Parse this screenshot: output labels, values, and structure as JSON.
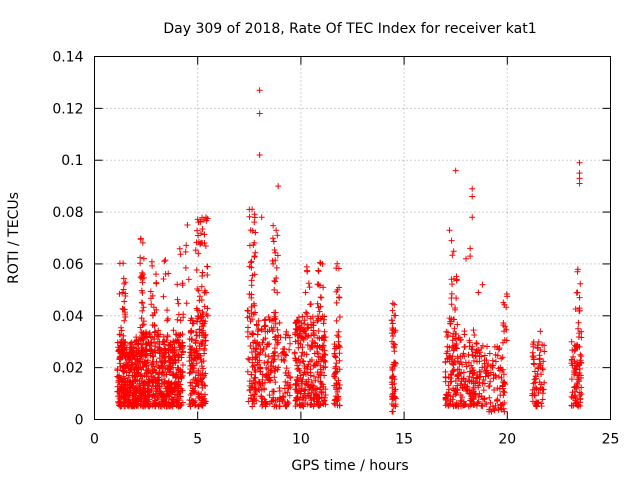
{
  "chart_data": {
    "type": "scatter",
    "title": "Day 309 of 2018, Rate Of TEC Index for receiver kat1",
    "xlabel": "GPS time / hours",
    "ylabel": "ROTI / TECUs",
    "xlim": [
      0,
      25
    ],
    "ylim": [
      0,
      0.14
    ],
    "xticks": [
      0,
      5,
      10,
      15,
      20,
      25
    ],
    "xtick_labels": [
      "0",
      "5",
      "10",
      "15",
      "20",
      "25"
    ],
    "yticks": [
      0,
      0.02,
      0.04,
      0.06,
      0.08,
      0.1,
      0.12,
      0.14
    ],
    "ytick_labels": [
      "0",
      "0.02",
      "0.04",
      "0.06",
      "0.08",
      "0.1",
      "0.12",
      "0.14"
    ],
    "grid": true,
    "marker": "+",
    "color": "#ff0000",
    "series": [
      {
        "name": "ROTI",
        "clusters": [
          {
            "x": [
              1.1,
              1.6
            ],
            "y": [
              0.005,
              0.03
            ],
            "n": 150
          },
          {
            "x": [
              1.2,
              1.5
            ],
            "y": [
              0.03,
              0.061
            ],
            "n": 25
          },
          {
            "x": [
              1.6,
              2.0
            ],
            "y": [
              0.005,
              0.03
            ],
            "n": 120
          },
          {
            "x": [
              2.0,
              2.5
            ],
            "y": [
              0.005,
              0.035
            ],
            "n": 160
          },
          {
            "x": [
              2.2,
              2.4
            ],
            "y": [
              0.035,
              0.071
            ],
            "n": 25
          },
          {
            "x": [
              2.5,
              3.2
            ],
            "y": [
              0.005,
              0.035
            ],
            "n": 170
          },
          {
            "x": [
              2.7,
              3.0
            ],
            "y": [
              0.035,
              0.061
            ],
            "n": 18
          },
          {
            "x": [
              3.2,
              3.8
            ],
            "y": [
              0.005,
              0.03
            ],
            "n": 150
          },
          {
            "x": [
              3.3,
              3.6
            ],
            "y": [
              0.03,
              0.063
            ],
            "n": 15
          },
          {
            "x": [
              3.8,
              4.3
            ],
            "y": [
              0.005,
              0.035
            ],
            "n": 120
          },
          {
            "x": [
              4.0,
              4.3
            ],
            "y": [
              0.035,
              0.066
            ],
            "n": 12
          },
          {
            "x": [
              4.4,
              4.6
            ],
            "y": [
              0.02,
              0.075
            ],
            "n": 6
          },
          {
            "x": [
              4.6,
              5.4
            ],
            "y": [
              0.005,
              0.04
            ],
            "n": 180
          },
          {
            "x": [
              4.9,
              5.5
            ],
            "y": [
              0.04,
              0.078
            ],
            "n": 45
          },
          {
            "x": [
              7.4,
              7.8
            ],
            "y": [
              0.005,
              0.05
            ],
            "n": 70
          },
          {
            "x": [
              7.5,
              7.8
            ],
            "y": [
              0.05,
              0.082
            ],
            "n": 22
          },
          {
            "x": [
              7.8,
              8.3
            ],
            "y": [
              0.005,
              0.04
            ],
            "n": 70
          },
          {
            "x": [
              8.3,
              9.0
            ],
            "y": [
              0.005,
              0.04
            ],
            "n": 90
          },
          {
            "x": [
              8.6,
              8.9
            ],
            "y": [
              0.04,
              0.075
            ],
            "n": 18
          },
          {
            "x": [
              9.0,
              9.5
            ],
            "y": [
              0.005,
              0.035
            ],
            "n": 50
          },
          {
            "x": [
              9.7,
              10.4
            ],
            "y": [
              0.005,
              0.04
            ],
            "n": 140
          },
          {
            "x": [
              10.2,
              10.5
            ],
            "y": [
              0.04,
              0.061
            ],
            "n": 10
          },
          {
            "x": [
              10.4,
              11.2
            ],
            "y": [
              0.005,
              0.04
            ],
            "n": 150
          },
          {
            "x": [
              10.8,
              11.1
            ],
            "y": [
              0.04,
              0.061
            ],
            "n": 15
          },
          {
            "x": [
              11.6,
              11.9
            ],
            "y": [
              0.005,
              0.03
            ],
            "n": 50
          },
          {
            "x": [
              11.7,
              11.9
            ],
            "y": [
              0.03,
              0.065
            ],
            "n": 15
          },
          {
            "x": [
              14.4,
              14.6
            ],
            "y": [
              0.003,
              0.045
            ],
            "n": 60
          },
          {
            "x": [
              17.0,
              17.6
            ],
            "y": [
              0.005,
              0.035
            ],
            "n": 100
          },
          {
            "x": [
              17.2,
              17.6
            ],
            "y": [
              0.035,
              0.065
            ],
            "n": 22
          },
          {
            "x": [
              17.6,
              18.4
            ],
            "y": [
              0.005,
              0.035
            ],
            "n": 100
          },
          {
            "x": [
              18.3,
              19.1
            ],
            "y": [
              0.005,
              0.03
            ],
            "n": 80
          },
          {
            "x": [
              19.1,
              19.9
            ],
            "y": [
              0.003,
              0.03
            ],
            "n": 70
          },
          {
            "x": [
              19.8,
              20.0
            ],
            "y": [
              0.03,
              0.05
            ],
            "n": 12
          },
          {
            "x": [
              21.2,
              21.8
            ],
            "y": [
              0.005,
              0.03
            ],
            "n": 70
          },
          {
            "x": [
              23.1,
              23.6
            ],
            "y": [
              0.005,
              0.03
            ],
            "n": 80
          },
          {
            "x": [
              23.3,
              23.6
            ],
            "y": [
              0.03,
              0.058
            ],
            "n": 12
          }
        ],
        "outliers": [
          [
            8.0,
            0.127
          ],
          [
            8.0,
            0.118
          ],
          [
            8.0,
            0.102
          ],
          [
            8.9,
            0.09
          ],
          [
            7.5,
            0.081
          ],
          [
            8.1,
            0.078
          ],
          [
            4.5,
            0.075
          ],
          [
            5.3,
            0.077
          ],
          [
            5.4,
            0.078
          ],
          [
            8.8,
            0.073
          ],
          [
            17.5,
            0.096
          ],
          [
            18.3,
            0.089
          ],
          [
            18.3,
            0.086
          ],
          [
            18.3,
            0.078
          ],
          [
            17.2,
            0.073
          ],
          [
            17.3,
            0.069
          ],
          [
            18.2,
            0.066
          ],
          [
            18.2,
            0.063
          ],
          [
            18.0,
            0.062
          ],
          [
            18.6,
            0.049
          ],
          [
            18.8,
            0.052
          ],
          [
            23.5,
            0.099
          ],
          [
            23.5,
            0.095
          ],
          [
            23.5,
            0.093
          ],
          [
            23.5,
            0.091
          ],
          [
            23.4,
            0.057
          ],
          [
            23.4,
            0.049
          ],
          [
            23.5,
            0.047
          ],
          [
            23.5,
            0.043
          ],
          [
            21.6,
            0.034
          ]
        ]
      }
    ]
  }
}
